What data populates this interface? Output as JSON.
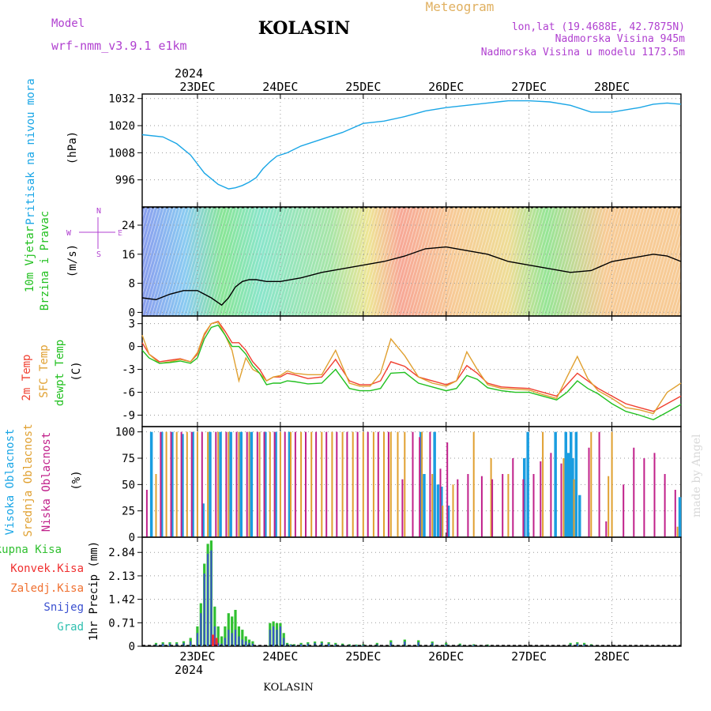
{
  "header": {
    "model_label": "Model",
    "model_name": "wrf-nmm_v3.9.1 e1km",
    "station": "KOLASIN",
    "meteogram": "Meteogram",
    "lonlat": "lon,lat (19.4688E, 42.7875N)",
    "elevation": "Nadmorska Visina 945m",
    "model_elevation": "Nadmorska Visina u modelu 1173.5m",
    "footer_station": "KOLASIN",
    "watermark": "made by Angel"
  },
  "colors": {
    "pressure": "#1aa6e6",
    "temp2m": "#f04030",
    "sfc": "#e0a030",
    "dewpt": "#22c020",
    "high_cloud": "#1a9de0",
    "mid_cloud": "#e0a030",
    "low_cloud": "#c0208a",
    "total_precip": "#30c030",
    "convective": "#f03030",
    "freezing": "#f07030",
    "snow": "#3a50d0",
    "hail": "#30c0b0",
    "purple_text": "#b040d0",
    "gold_text": "#e0b060"
  },
  "time_axis": {
    "year": "2024",
    "days": [
      "23DEC",
      "24DEC",
      "25DEC",
      "26DEC",
      "27DEC",
      "28DEC"
    ],
    "start_offset_hours": -16,
    "end_offset_hours": 140
  },
  "chart_data": [
    {
      "type": "line",
      "id": "pressure",
      "ylabel": [
        "Pritisak na nivou mora",
        "(hPa)"
      ],
      "yticks": [
        996,
        1008,
        1020,
        1032
      ],
      "ylim": [
        984,
        1034
      ],
      "series": [
        {
          "color_key": "pressure",
          "x": [
            -16,
            -10,
            -6,
            -2,
            2,
            6,
            9,
            11,
            13,
            15,
            17,
            19,
            21,
            23,
            26,
            30,
            36,
            42,
            48,
            54,
            60,
            66,
            72,
            78,
            84,
            90,
            96,
            102,
            108,
            114,
            120,
            126,
            128,
            132,
            136,
            140
          ],
          "values": [
            1016,
            1015,
            1012,
            1007,
            999,
            994,
            992,
            992.5,
            993.5,
            995,
            997,
            1001,
            1004,
            1006.5,
            1008,
            1011,
            1014,
            1017,
            1021,
            1022,
            1024,
            1026.5,
            1028,
            1029,
            1030,
            1031,
            1031,
            1030.5,
            1029,
            1026,
            1026,
            1027.5,
            1028,
            1029.5,
            1030,
            1029.5
          ]
        }
      ]
    },
    {
      "type": "line",
      "id": "wind",
      "ylabel": [
        "10m Vjetar",
        "Brzina i Pravac",
        "(m/s)"
      ],
      "compass": [
        "N",
        "W",
        "E",
        "S"
      ],
      "yticks": [
        0,
        8,
        16,
        24
      ],
      "ylim": [
        -1,
        29
      ],
      "series": [
        {
          "color": "#000000",
          "x": [
            -16,
            -12,
            -8,
            -4,
            0,
            4,
            7,
            9,
            11,
            13,
            15,
            17,
            20,
            24,
            30,
            36,
            42,
            48,
            54,
            60,
            66,
            72,
            78,
            84,
            90,
            96,
            102,
            108,
            114,
            120,
            126,
            132,
            136,
            140
          ],
          "values": [
            4,
            3.5,
            5,
            6,
            6,
            4,
            2,
            4,
            7,
            8.5,
            9,
            9,
            8.5,
            8.5,
            9.5,
            11,
            12,
            13,
            14,
            15.5,
            17.5,
            18,
            17,
            16,
            14,
            13,
            12,
            11,
            11.5,
            14,
            15,
            16,
            15.5,
            14
          ]
        }
      ]
    },
    {
      "type": "line",
      "id": "temperature",
      "ylabel": [
        "2m Temp",
        "SFC Temp",
        "dewpt Temp",
        "(C)"
      ],
      "yticks": [
        -9,
        -6,
        -3,
        0,
        3
      ],
      "ylim": [
        -10.5,
        4
      ],
      "series": [
        {
          "color_key": "temp2m",
          "x": [
            -16,
            -14,
            -11,
            -8,
            -5,
            -2,
            0,
            2,
            4,
            6,
            8,
            10,
            12,
            14,
            16,
            18,
            20,
            22,
            24,
            26,
            28,
            32,
            36,
            40,
            44,
            47,
            50,
            53,
            56,
            60,
            64,
            68,
            72,
            75,
            78,
            81,
            84,
            88,
            92,
            96,
            100,
            104,
            107,
            110,
            113,
            116,
            120,
            124,
            128,
            132,
            136,
            140
          ],
          "values": [
            0.5,
            -1,
            -2,
            -1.8,
            -1.6,
            -2,
            -1,
            1.5,
            3,
            3.3,
            2,
            0.5,
            0.5,
            -0.5,
            -2,
            -3,
            -4.5,
            -4,
            -4,
            -3.5,
            -3.7,
            -4.2,
            -4,
            -1.7,
            -4.5,
            -5,
            -5,
            -4.5,
            -2,
            -2.6,
            -4,
            -4.5,
            -5,
            -4.5,
            -2.5,
            -3.5,
            -4.8,
            -5.3,
            -5.4,
            -5.5,
            -6,
            -6.5,
            -5,
            -3.5,
            -4.5,
            -5.5,
            -6.5,
            -7.5,
            -8,
            -8.5,
            -7.5,
            -6.5
          ]
        },
        {
          "color_key": "sfc",
          "x": [
            -16,
            -14,
            -11,
            -8,
            -5,
            -2,
            0,
            2,
            4,
            6,
            8,
            10,
            12,
            14,
            16,
            18,
            20,
            22,
            24,
            26,
            28,
            32,
            36,
            40,
            44,
            47,
            50,
            53,
            56,
            60,
            64,
            68,
            72,
            75,
            78,
            81,
            84,
            88,
            92,
            96,
            100,
            104,
            107,
            110,
            113,
            116,
            120,
            124,
            128,
            132,
            136,
            140
          ],
          "values": [
            1.5,
            -1,
            -2.2,
            -2,
            -1.7,
            -2,
            -0.8,
            1.7,
            3,
            3.2,
            1.5,
            -0.5,
            -4.5,
            -1.5,
            -3,
            -3.5,
            -4.5,
            -4,
            -3.8,
            -3.2,
            -3.5,
            -3.7,
            -3.7,
            -0.5,
            -4.8,
            -5.2,
            -5.2,
            -3.5,
            1,
            -1.2,
            -4,
            -4.8,
            -5.2,
            -4.5,
            -0.7,
            -3,
            -5,
            -5.5,
            -5.6,
            -5.7,
            -6.3,
            -6.8,
            -4,
            -1.3,
            -4.2,
            -5.8,
            -6.8,
            -8,
            -8.3,
            -8.8,
            -6,
            -4.8
          ]
        },
        {
          "color_key": "dewpt",
          "x": [
            -16,
            -14,
            -11,
            -8,
            -5,
            -2,
            0,
            2,
            4,
            6,
            8,
            10,
            12,
            14,
            16,
            18,
            20,
            22,
            24,
            26,
            28,
            32,
            36,
            40,
            44,
            47,
            50,
            53,
            56,
            60,
            64,
            68,
            72,
            75,
            78,
            81,
            84,
            88,
            92,
            96,
            100,
            104,
            107,
            110,
            113,
            116,
            120,
            124,
            128,
            132,
            136,
            140
          ],
          "values": [
            -0.5,
            -1.5,
            -2.2,
            -2.1,
            -1.9,
            -2.2,
            -1.5,
            1,
            2.5,
            2.8,
            1.5,
            0,
            0,
            -1,
            -2.5,
            -3.5,
            -5,
            -4.8,
            -4.8,
            -4.5,
            -4.6,
            -4.9,
            -4.8,
            -3,
            -5.5,
            -5.8,
            -5.8,
            -5.5,
            -3.5,
            -3.4,
            -4.8,
            -5.3,
            -5.8,
            -5.5,
            -3.8,
            -4.3,
            -5.4,
            -5.8,
            -6,
            -6,
            -6.5,
            -7,
            -6,
            -4.5,
            -5.5,
            -6.2,
            -7.5,
            -8.5,
            -9,
            -9.6,
            -8.6,
            -7.6
          ]
        }
      ]
    },
    {
      "type": "bar",
      "id": "cloud",
      "ylabel": [
        "Visoka Oblacnost",
        "Srednja Oblacnost",
        "Niska Oblacnost",
        "(%)"
      ],
      "yticks": [
        0,
        25,
        50,
        75,
        100
      ],
      "ylim": [
        0,
        105
      ],
      "series": [
        {
          "name": "Visoka Oblacnost",
          "color_key": "high_cloud",
          "x": [
            -13,
            -10,
            -7,
            -4,
            -1,
            2,
            4,
            7,
            10,
            13,
            16,
            20,
            23,
            27,
            65,
            66,
            69,
            70,
            71,
            73,
            95,
            96,
            104,
            107,
            107.8,
            108.5,
            109,
            110,
            111,
            140
          ],
          "values": [
            100,
            100,
            100,
            98,
            100,
            32,
            100,
            100,
            100,
            100,
            100,
            100,
            100,
            100,
            100,
            60,
            100,
            50,
            48,
            30,
            75,
            100,
            100,
            100,
            80,
            100,
            75,
            100,
            40,
            38
          ]
        },
        {
          "name": "Srednja Oblacnost",
          "color_key": "mid_cloud",
          "x": [
            -12,
            -9,
            -6,
            -3,
            0,
            3,
            6,
            9,
            12,
            15,
            18,
            21,
            24,
            27,
            30,
            33,
            36,
            39,
            42,
            45,
            48,
            51,
            54,
            56,
            58,
            60,
            65,
            68,
            71,
            74,
            80,
            85,
            90,
            100,
            106,
            109,
            114,
            119,
            120,
            139
          ],
          "values": [
            60,
            100,
            100,
            100,
            100,
            100,
            100,
            100,
            100,
            100,
            100,
            100,
            100,
            100,
            100,
            100,
            100,
            100,
            100,
            100,
            100,
            100,
            100,
            100,
            100,
            100,
            100,
            60,
            30,
            50,
            100,
            75,
            60,
            100,
            75,
            55,
            100,
            58,
            100,
            10
          ]
        },
        {
          "name": "Niska Oblacnost",
          "color_key": "low_cloud",
          "x": [
            -15,
            -11,
            -8,
            -5,
            -2,
            1,
            5,
            8,
            11,
            14,
            17,
            19,
            22,
            25,
            28,
            31,
            34,
            37,
            40,
            43,
            46,
            49,
            52,
            55,
            59,
            62,
            64,
            67,
            70,
            72,
            75,
            78,
            82,
            85,
            88,
            91,
            94,
            97,
            99,
            102,
            105,
            113,
            116,
            118,
            123,
            126,
            129,
            132,
            135,
            138
          ],
          "values": [
            45,
            100,
            100,
            100,
            100,
            100,
            100,
            100,
            100,
            100,
            100,
            100,
            100,
            100,
            100,
            100,
            100,
            100,
            100,
            100,
            100,
            100,
            100,
            100,
            55,
            100,
            95,
            100,
            65,
            90,
            55,
            60,
            58,
            55,
            60,
            75,
            55,
            60,
            72,
            80,
            70,
            85,
            100,
            15,
            50,
            85,
            75,
            80,
            60,
            45
          ]
        }
      ]
    },
    {
      "type": "bar",
      "id": "precip",
      "ylabel": [
        "1hr Precip (mm)"
      ],
      "legend": [
        "Ukupna Kisa",
        "Konvek.Kisa",
        "Zaledj.Kisa",
        "Snijeg",
        "Grad"
      ],
      "yticks": [
        0,
        0.71,
        1.42,
        2.13,
        2.84
      ],
      "ylim": [
        0,
        3.3
      ],
      "series": [
        {
          "name": "Ukupna Kisa",
          "color_key": "total_precip",
          "x": [
            -12,
            -10,
            -8,
            -6,
            -4,
            -2,
            0,
            1,
            2,
            3,
            4,
            5,
            6,
            7,
            8,
            9,
            10,
            11,
            12,
            13,
            14,
            15,
            16,
            21,
            22,
            23,
            24,
            25,
            26,
            27,
            28,
            30,
            32,
            34,
            36,
            38,
            40,
            42,
            44,
            46,
            48,
            52,
            56,
            60,
            64,
            68,
            72,
            76,
            80,
            84,
            108,
            110,
            112,
            114
          ],
          "values": [
            0.1,
            0.12,
            0.12,
            0.12,
            0.15,
            0.25,
            0.6,
            1.3,
            2.5,
            3.1,
            3.2,
            1.2,
            0.6,
            0.3,
            0.6,
            1.0,
            0.9,
            1.1,
            0.6,
            0.5,
            0.3,
            0.2,
            0.15,
            0.7,
            0.75,
            0.7,
            0.7,
            0.4,
            0.1,
            0.06,
            0.06,
            0.1,
            0.12,
            0.14,
            0.14,
            0.12,
            0.1,
            0.08,
            0.06,
            0.05,
            0.06,
            0.1,
            0.18,
            0.2,
            0.18,
            0.14,
            0.1,
            0.08,
            0.06,
            0.05,
            0.1,
            0.12,
            0.1,
            0.06
          ]
        },
        {
          "name": "Snijeg",
          "color_key": "snow",
          "x": [
            -12,
            -10,
            -8,
            -6,
            -4,
            -2,
            0,
            1,
            2,
            3,
            4,
            5,
            6,
            7,
            8,
            9,
            10,
            11,
            12,
            13,
            14,
            15,
            16,
            21,
            22,
            23,
            24,
            25,
            26,
            27,
            28,
            30,
            32,
            34,
            36,
            38,
            40,
            42,
            44,
            46,
            48,
            52,
            56,
            60,
            64,
            68,
            72,
            76,
            80,
            84,
            108,
            110,
            112,
            114
          ],
          "values": [
            0.06,
            0.08,
            0.08,
            0.08,
            0.1,
            0.15,
            0.4,
            1.0,
            2.2,
            2.8,
            2.9,
            0.6,
            0.1,
            0.08,
            0.25,
            0.5,
            0.4,
            0.5,
            0.3,
            0.2,
            0.15,
            0.1,
            0.08,
            0.5,
            0.6,
            0.5,
            0.6,
            0.25,
            0.06,
            0.04,
            0.04,
            0.06,
            0.08,
            0.1,
            0.1,
            0.08,
            0.06,
            0.05,
            0.04,
            0.03,
            0.04,
            0.06,
            0.12,
            0.14,
            0.12,
            0.1,
            0.06,
            0.05,
            0.04,
            0.03,
            0.06,
            0.08,
            0.06,
            0.04
          ]
        },
        {
          "name": "Konvek.Kisa",
          "color_key": "convective",
          "x": [
            4.5,
            5.5
          ],
          "values": [
            0.35,
            0.25
          ]
        }
      ]
    }
  ]
}
